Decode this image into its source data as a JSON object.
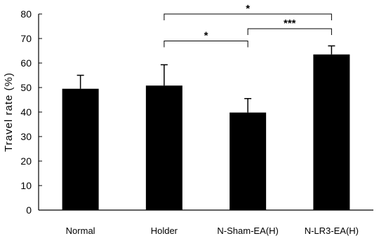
{
  "chart_data": {
    "type": "bar",
    "categories": [
      "Normal",
      "Holder",
      "N-Sham-EA(H)",
      "N-LR3-EA(H)"
    ],
    "values": [
      49.5,
      50.8,
      39.8,
      63.5
    ],
    "errors": [
      5.5,
      8.5,
      5.7,
      3.5
    ],
    "ylabel": "Travel rate (%)",
    "xlabel": "",
    "ylim": [
      0,
      80
    ],
    "yticks": [
      0,
      10,
      20,
      30,
      40,
      50,
      60,
      70,
      80
    ],
    "bar_color": "#000000",
    "grid": false,
    "significance": [
      {
        "from": 1,
        "to": 2,
        "label": "*",
        "y": 69
      },
      {
        "from": 2,
        "to": 3,
        "label": "***",
        "y": 74
      },
      {
        "from": 1,
        "to": 3,
        "label": "*",
        "y": 80
      }
    ]
  }
}
